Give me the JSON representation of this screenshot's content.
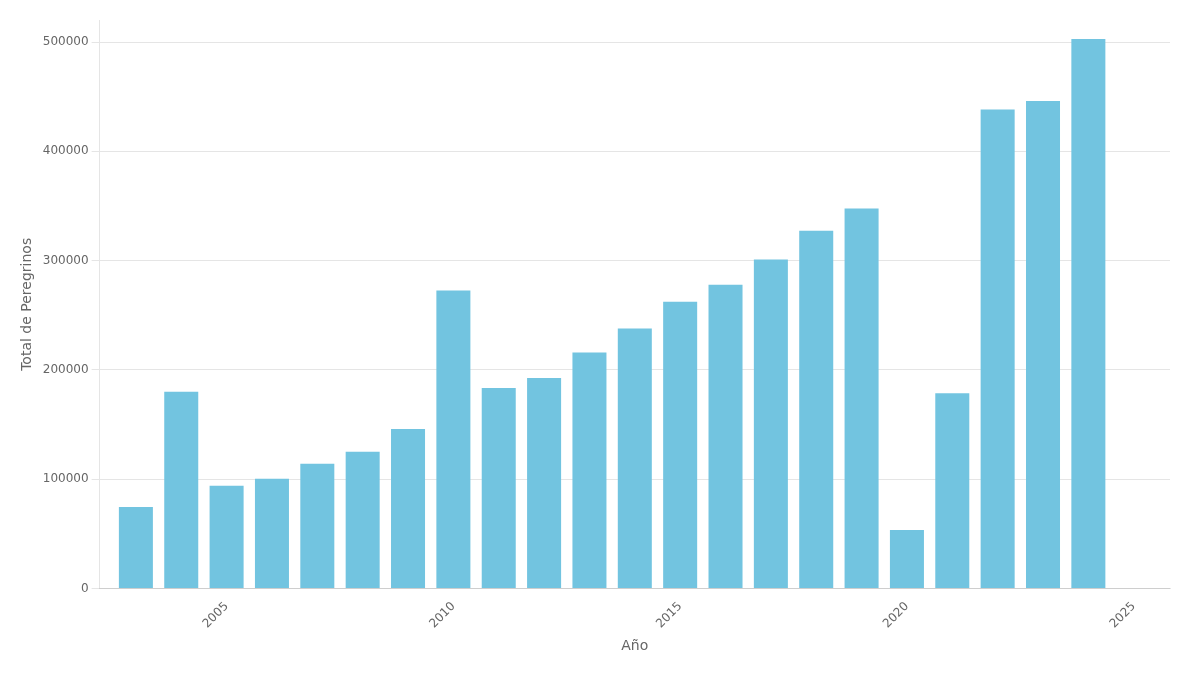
{
  "chart_data": {
    "type": "bar",
    "xlabel": "Año",
    "ylabel": "Total de Peregrinos",
    "x": [
      2003,
      2004,
      2005,
      2006,
      2007,
      2008,
      2009,
      2010,
      2011,
      2012,
      2013,
      2014,
      2015,
      2016,
      2017,
      2018,
      2019,
      2020,
      2021,
      2022,
      2023,
      2024
    ],
    "values": [
      74614,
      179944,
      93924,
      100377,
      114026,
      125141,
      145877,
      272703,
      183366,
      192488,
      215880,
      237886,
      262458,
      277915,
      301036,
      327378,
      347578,
      53413,
      178530,
      438254,
      446051,
      502828
    ],
    "color": "#72c4e0",
    "xlim": [
      2002.2,
      2025.8
    ],
    "ylim": [
      0,
      520000
    ],
    "xticks": [
      2005,
      2010,
      2015,
      2020,
      2025
    ],
    "yticks": [
      0,
      100000,
      200000,
      300000,
      400000,
      500000
    ],
    "grid": true
  }
}
